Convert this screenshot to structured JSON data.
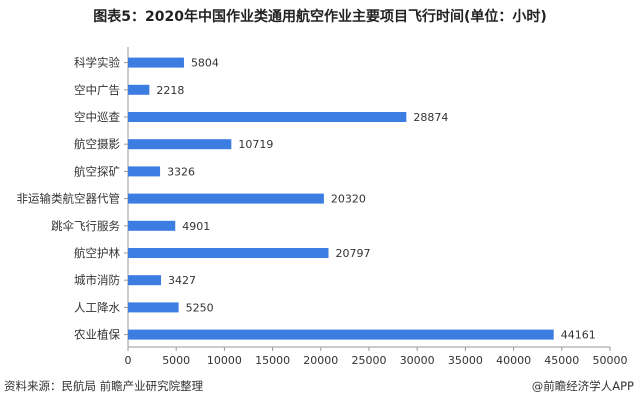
{
  "chart_data": {
    "type": "bar",
    "orientation": "horizontal",
    "title": "图表5：2020年中国作业类通用航空作业主要项目飞行时间(单位：小时)",
    "categories": [
      "科学实验",
      "空中广告",
      "空中巡查",
      "航空摄影",
      "航空探矿",
      "非运输类航空器代管",
      "跳伞飞行服务",
      "航空护林",
      "城市消防",
      "人工降水",
      "农业植保"
    ],
    "values": [
      5804,
      2218,
      28874,
      10719,
      3326,
      20320,
      4901,
      20797,
      3427,
      5250,
      44161
    ],
    "xlim": [
      0,
      50000
    ],
    "xticks": [
      0,
      5000,
      10000,
      15000,
      20000,
      25000,
      30000,
      35000,
      40000,
      45000,
      50000
    ],
    "xticklabels": [
      "0",
      "5000",
      "10000",
      "15000",
      "20000",
      "25000",
      "30000",
      "35000",
      "40000",
      "45000",
      "50000"
    ],
    "bar_color": "#3b7de0",
    "grid": false
  },
  "footer": {
    "source": "资料来源：民航局 前瞻产业研究院整理",
    "credit": "@前瞻经济学人APP"
  }
}
